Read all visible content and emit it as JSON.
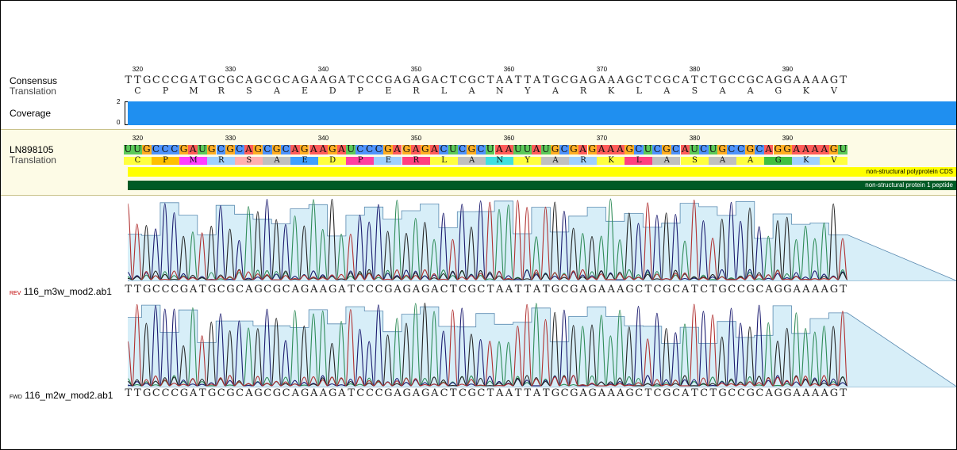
{
  "tracks": {
    "consensus_label": "Consensus",
    "translation_label": "Translation",
    "coverage_label": "Coverage",
    "coverage_max": "2",
    "coverage_min": "0",
    "reference_label": "LN898105",
    "reference_translation_label": "Translation",
    "read1_tag": "REV",
    "read1_name": "116_m3w_mod2.ab1",
    "read2_tag": "FWD",
    "read2_name": "116_m2w_mod2.ab1"
  },
  "ruler": {
    "ticks": [
      "320",
      "330",
      "340",
      "350",
      "360",
      "370",
      "380",
      "390"
    ]
  },
  "sequences": {
    "consensus": "TTGCCCGATGCGCAGCGCAGAAGATCCCGAGAGACTCGCTAATTATGCGAGAAAGCTCGCATCTGCCGCAGGAAAAGT",
    "reference": "UUGCCCGAUGCGCAGCGCAGAAGAUCCCGAGAGACUCGCUAAUUAUGCGAGAAAGCUCGCAUCUGCCGCAGGAAAAGU",
    "translation": [
      "C",
      "P",
      "M",
      "R",
      "S",
      "A",
      "E",
      "D",
      "P",
      "E",
      "R",
      "L",
      "A",
      "N",
      "Y",
      "A",
      "R",
      "K",
      "L",
      "A",
      "S",
      "A",
      "A",
      "G",
      "K",
      "V"
    ],
    "read1": "TTGCCCGATGCGCAGCGCAGAAGATCCCGAGAGACTCGCTAATTATGCGAGAAAGCTCGCATCTGCCGCAGGAAAAGT",
    "read2": "TTGCCCGATGCGCAGCGCAGAAGATCCCGAGAGACTCGCTAATTATGCGAGAAAGCTCGCATCTGCCGCAGGAAAAGT"
  },
  "annotations": {
    "cds_label": "non-structural polyprotein CDS",
    "peptide_label": "non-structural protein 1 peptide"
  },
  "colors": {
    "A": "#ff4040",
    "C": "#3080ff",
    "G": "#ffa000",
    "T": "#40c040",
    "U": "#40c040",
    "coverage": "#1f8ff0",
    "cds": "#ffff00",
    "peptide": "#005a25",
    "trace_A": "#2e8b57",
    "trace_C": "#1a1a6e",
    "trace_G": "#222222",
    "trace_T": "#b03030"
  }
}
